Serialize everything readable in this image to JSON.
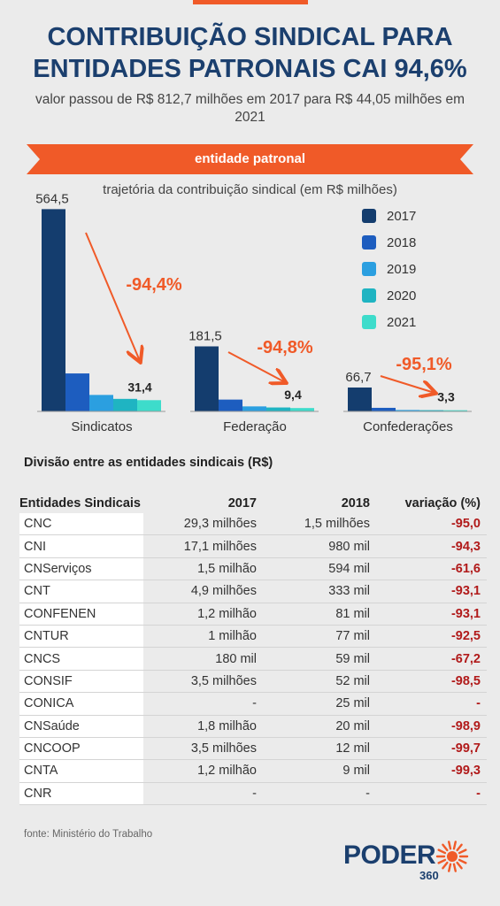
{
  "header": {
    "title_line1": "CONTRIBUIÇÃO SINDICAL PARA",
    "title_line2": "ENTIDADES PATRONAIS CAI 94,6%",
    "subtitle": "valor passou de R$ 812,7 milhões em 2017 para R$ 44,05 milhões em 2021",
    "banner": "entidade patronal"
  },
  "colors": {
    "accent": "#f05a28",
    "title": "#1b3f6e",
    "negative": "#b11a1a"
  },
  "chart_data": {
    "type": "bar",
    "title": "",
    "subtitle": "trajetória da contribuição sindical (em R$ milhões)",
    "categories": [
      "Sindicatos",
      "Federação",
      "Confederações"
    ],
    "series": [
      {
        "name": "2017",
        "color": "#143d6e",
        "values": [
          564.5,
          181.5,
          66.7
        ]
      },
      {
        "name": "2018",
        "color": "#1d5dbf",
        "values": [
          106,
          33,
          10
        ]
      },
      {
        "name": "2019",
        "color": "#2b9fe0",
        "values": [
          46,
          14,
          4
        ]
      },
      {
        "name": "2020",
        "color": "#1fb4c2",
        "values": [
          35,
          11,
          3.5
        ]
      },
      {
        "name": "2021",
        "color": "#3ddccb",
        "values": [
          31.4,
          9.4,
          3.3
        ]
      }
    ],
    "first_labels": [
      "564,5",
      "181,5",
      "66,7"
    ],
    "last_labels": [
      "31,4",
      "9,4",
      "3,3"
    ],
    "changes": [
      "-94,4%",
      "-94,8%",
      "-95,1%"
    ],
    "legend_position": "right",
    "ylim": [
      0,
      600
    ]
  },
  "table": {
    "title": "Divisão entre as entidades sindicais (R$)",
    "headers": {
      "name": "Entidades Sindicais",
      "y1": "2017",
      "y2": "2018",
      "var": "variação (%)"
    },
    "rows": [
      {
        "name": "CNC",
        "y1": "29,3 milhões",
        "y2": "1,5 milhões",
        "var": "-95,0"
      },
      {
        "name": "CNI",
        "y1": "17,1 milhões",
        "y2": "980 mil",
        "var": "-94,3"
      },
      {
        "name": "CNServiços",
        "y1": "1,5 milhão",
        "y2": "594 mil",
        "var": "-61,6"
      },
      {
        "name": "CNT",
        "y1": "4,9 milhões",
        "y2": "333 mil",
        "var": "-93,1"
      },
      {
        "name": "CONFENEN",
        "y1": "1,2 milhão",
        "y2": "81 mil",
        "var": "-93,1"
      },
      {
        "name": "CNTUR",
        "y1": "1 milhão",
        "y2": "77 mil",
        "var": "-92,5"
      },
      {
        "name": "CNCS",
        "y1": "180 mil",
        "y2": "59 mil",
        "var": "-67,2"
      },
      {
        "name": "CONSIF",
        "y1": "3,5 milhões",
        "y2": "52 mil",
        "var": "-98,5"
      },
      {
        "name": "CONICA",
        "y1": "-",
        "y2": "25 mil",
        "var": "-"
      },
      {
        "name": "CNSaúde",
        "y1": "1,8 milhão",
        "y2": "20 mil",
        "var": "-98,9"
      },
      {
        "name": "CNCOOP",
        "y1": "3,5 milhões",
        "y2": "12 mil",
        "var": "-99,7"
      },
      {
        "name": "CNTA",
        "y1": "1,2 milhão",
        "y2": "9 mil",
        "var": "-99,3"
      },
      {
        "name": "CNR",
        "y1": "-",
        "y2": "-",
        "var": "-"
      }
    ]
  },
  "footer": {
    "source": "fonte: Ministério do Trabalho",
    "logo_text": "PODER",
    "logo_sub": "360"
  }
}
